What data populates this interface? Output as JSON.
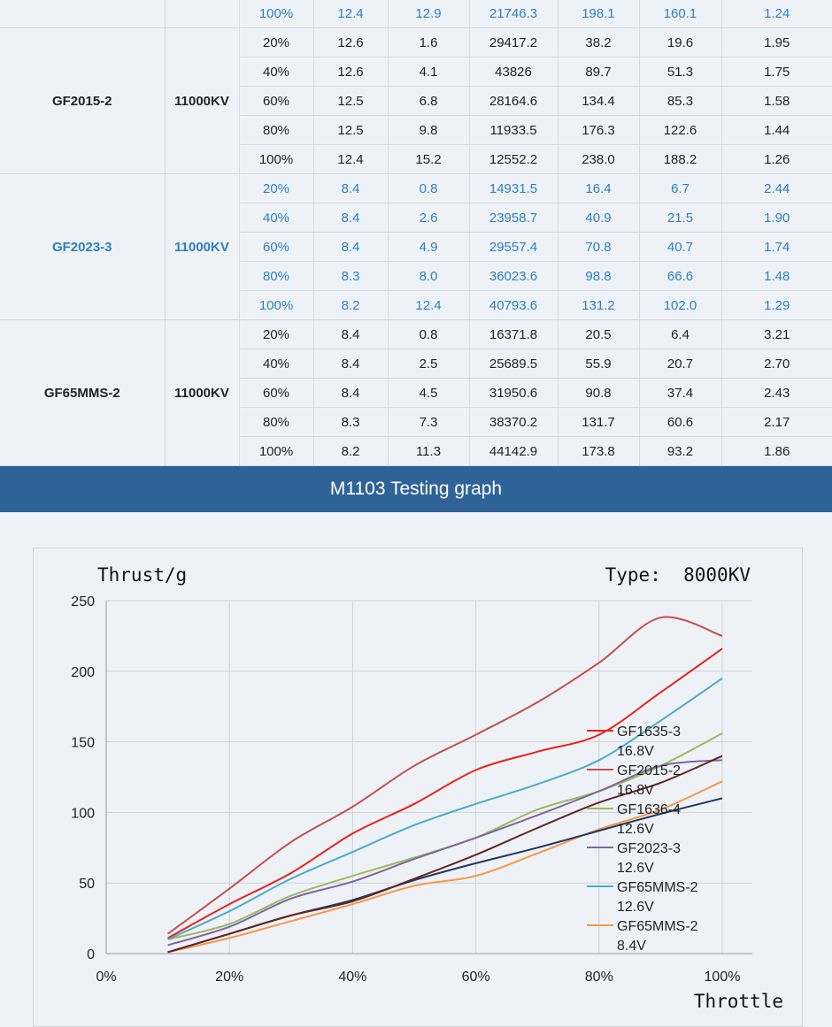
{
  "table": {
    "rows": [
      {
        "pct": "100%",
        "v": "12.4",
        "a": "12.9",
        "rpm": "21746.3",
        "thrust": "198.1",
        "w": "160.1",
        "eff": "1.24",
        "hl": true
      },
      {
        "pct": "20%",
        "v": "12.6",
        "a": "1.6",
        "rpm": "29417.2",
        "thrust": "38.2",
        "w": "19.6",
        "eff": "1.95",
        "hl": false
      },
      {
        "pct": "40%",
        "v": "12.6",
        "a": "4.1",
        "rpm": "43826",
        "thrust": "89.7",
        "w": "51.3",
        "eff": "1.75",
        "hl": false
      },
      {
        "pct": "60%",
        "v": "12.5",
        "a": "6.8",
        "rpm": "28164.6",
        "thrust": "134.4",
        "w": "85.3",
        "eff": "1.58",
        "hl": false
      },
      {
        "pct": "80%",
        "v": "12.5",
        "a": "9.8",
        "rpm": "11933.5",
        "thrust": "176.3",
        "w": "122.6",
        "eff": "1.44",
        "hl": false
      },
      {
        "pct": "100%",
        "v": "12.4",
        "a": "15.2",
        "rpm": "12552.2",
        "thrust": "238.0",
        "w": "188.2",
        "eff": "1.26",
        "hl": false
      },
      {
        "pct": "20%",
        "v": "8.4",
        "a": "0.8",
        "rpm": "14931.5",
        "thrust": "16.4",
        "w": "6.7",
        "eff": "2.44",
        "hl": true
      },
      {
        "pct": "40%",
        "v": "8.4",
        "a": "2.6",
        "rpm": "23958.7",
        "thrust": "40.9",
        "w": "21.5",
        "eff": "1.90",
        "hl": true
      },
      {
        "pct": "60%",
        "v": "8.4",
        "a": "4.9",
        "rpm": "29557.4",
        "thrust": "70.8",
        "w": "40.7",
        "eff": "1.74",
        "hl": true
      },
      {
        "pct": "80%",
        "v": "8.3",
        "a": "8.0",
        "rpm": "36023.6",
        "thrust": "98.8",
        "w": "66.6",
        "eff": "1.48",
        "hl": true
      },
      {
        "pct": "100%",
        "v": "8.2",
        "a": "12.4",
        "rpm": "40793.6",
        "thrust": "131.2",
        "w": "102.0",
        "eff": "1.29",
        "hl": true
      },
      {
        "pct": "20%",
        "v": "8.4",
        "a": "0.8",
        "rpm": "16371.8",
        "thrust": "20.5",
        "w": "6.4",
        "eff": "3.21",
        "hl": false
      },
      {
        "pct": "40%",
        "v": "8.4",
        "a": "2.5",
        "rpm": "25689.5",
        "thrust": "55.9",
        "w": "20.7",
        "eff": "2.70",
        "hl": false
      },
      {
        "pct": "60%",
        "v": "8.4",
        "a": "4.5",
        "rpm": "31950.6",
        "thrust": "90.8",
        "w": "37.4",
        "eff": "2.43",
        "hl": false
      },
      {
        "pct": "80%",
        "v": "8.3",
        "a": "7.3",
        "rpm": "38370.2",
        "thrust": "131.7",
        "w": "60.6",
        "eff": "2.17",
        "hl": false
      },
      {
        "pct": "100%",
        "v": "8.2",
        "a": "11.3",
        "rpm": "44142.9",
        "thrust": "173.8",
        "w": "93.2",
        "eff": "1.86",
        "hl": false
      }
    ],
    "groups": [
      {
        "model": "GF2015-2",
        "kv": "11000KV",
        "start": 1,
        "span": 5,
        "hl": false
      },
      {
        "model": "GF2023-3",
        "kv": "11000KV",
        "start": 6,
        "span": 5,
        "hl": true
      },
      {
        "model": "GF65MMS-2",
        "kv": "11000KV",
        "start": 11,
        "span": 5,
        "hl": false
      }
    ],
    "hl_color": "#2a7fc0"
  },
  "banner": {
    "title": "M1103 Testing graph",
    "bg": "#2f6398"
  },
  "chart_data": {
    "type": "line",
    "ylabel": "Thrust/g",
    "xlabel": "Throttle",
    "type_label": "Type:  8000KV",
    "x": [
      10,
      20,
      30,
      40,
      50,
      60,
      70,
      80,
      90,
      100
    ],
    "xlim": [
      0,
      100
    ],
    "ylim": [
      0,
      250
    ],
    "xticks": [
      "0%",
      "20%",
      "40%",
      "60%",
      "80%",
      "100%"
    ],
    "yticks": [
      "0",
      "50",
      "100",
      "150",
      "200",
      "250"
    ],
    "grid": true,
    "legend_position": "right",
    "series": [
      {
        "name": "GF1635-3 16.8V",
        "color": "#e8201a",
        "values": [
          11,
          35,
          57,
          85,
          106,
          130,
          143,
          155,
          185,
          216
        ]
      },
      {
        "name": "GF2015-2 16.8V",
        "color": "#c0504d",
        "values": [
          14,
          46,
          79,
          104,
          133,
          155,
          178,
          206,
          238,
          225
        ]
      },
      {
        "name": "GF1636-4 12.6V",
        "color": "#9bbb59",
        "values": [
          10,
          21,
          41,
          55,
          68,
          82,
          102,
          115,
          133,
          156
        ]
      },
      {
        "name": "GF2023-3 12.6V",
        "color": "#8064a2",
        "values": [
          6,
          19,
          39,
          51,
          67,
          82,
          98,
          115,
          133,
          137
        ]
      },
      {
        "name": "GF65MMS-2 12.6V",
        "color": "#4bacc6",
        "values": [
          10,
          30,
          53,
          72,
          91,
          106,
          120,
          137,
          165,
          195
        ]
      },
      {
        "name": "GF65MMS-2 8.4V",
        "color": "#f79646",
        "values": [
          1,
          11,
          23,
          35,
          48,
          55,
          71,
          88,
          102,
          122
        ]
      },
      {
        "name": "",
        "color": "#1f3864",
        "values": [
          1,
          14,
          27,
          38,
          52,
          64,
          75,
          87,
          99,
          110
        ]
      },
      {
        "name": "",
        "color": "#632523",
        "values": [
          1,
          14,
          27,
          37,
          53,
          70,
          89,
          107,
          121,
          140
        ]
      }
    ]
  }
}
